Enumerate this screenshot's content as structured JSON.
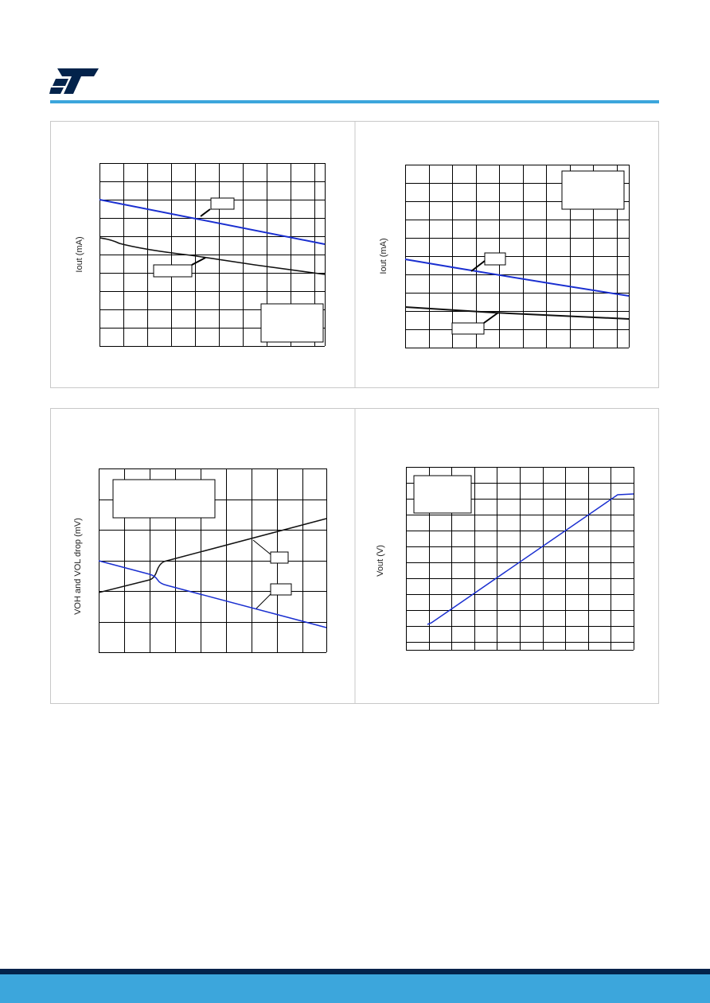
{
  "charts": [
    {
      "y_axis_label": "Iout (mA)"
    },
    {
      "y_axis_label": "Iout (mA)"
    },
    {
      "y_axis_label": "VOH and VOL drop (mV)"
    },
    {
      "y_axis_label": "Vout (V)"
    }
  ]
}
